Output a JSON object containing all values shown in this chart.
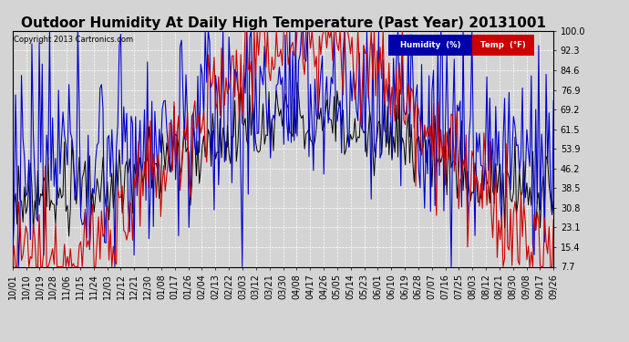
{
  "title": "Outdoor Humidity At Daily High Temperature (Past Year) 20131001",
  "copyright": "Copyright 2013 Cartronics.com",
  "yticks": [
    7.7,
    15.4,
    23.1,
    30.8,
    38.5,
    46.2,
    53.9,
    61.5,
    69.2,
    76.9,
    84.6,
    92.3,
    100.0
  ],
  "ylim": [
    7.7,
    100.0
  ],
  "xtick_labels": [
    "10/01",
    "10/10",
    "10/19",
    "10/28",
    "11/06",
    "11/15",
    "11/24",
    "12/03",
    "12/12",
    "12/21",
    "12/30",
    "01/08",
    "01/17",
    "01/26",
    "02/04",
    "02/13",
    "02/22",
    "03/03",
    "03/12",
    "03/21",
    "03/30",
    "04/08",
    "04/17",
    "04/26",
    "05/05",
    "05/14",
    "05/23",
    "06/01",
    "06/10",
    "06/19",
    "06/28",
    "07/07",
    "07/16",
    "07/25",
    "08/03",
    "08/12",
    "08/21",
    "08/30",
    "09/08",
    "09/17",
    "09/26"
  ],
  "bg_color": "#d4d4d4",
  "plot_bg": "#d4d4d4",
  "grid_color": "white",
  "humidity_color": "#0000cc",
  "temp_color": "#cc0000",
  "black_color": "#000000",
  "legend_humidity_bg": "#0000aa",
  "legend_temp_bg": "#cc0000",
  "title_fontsize": 11,
  "tick_fontsize": 7,
  "n_points": 366,
  "figwidth": 6.9,
  "figheight": 3.75,
  "dpi": 100
}
